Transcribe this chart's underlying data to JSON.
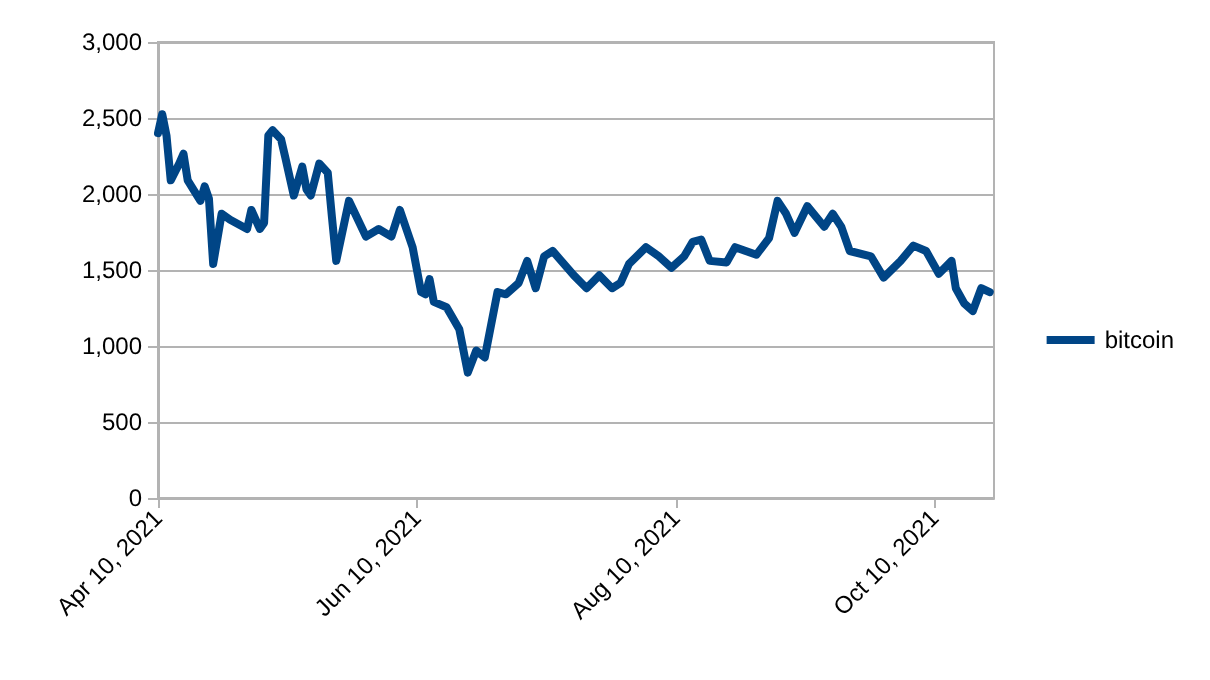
{
  "chart_data": {
    "type": "line",
    "x": [
      "2021-04-10",
      "2021-04-11",
      "2021-04-12",
      "2021-04-13",
      "2021-04-15",
      "2021-04-16",
      "2021-04-17",
      "2021-04-20",
      "2021-04-21",
      "2021-04-22",
      "2021-04-23",
      "2021-04-25",
      "2021-04-27",
      "2021-05-01",
      "2021-05-02",
      "2021-05-04",
      "2021-05-05",
      "2021-05-06",
      "2021-05-07",
      "2021-05-09",
      "2021-05-10",
      "2021-05-12",
      "2021-05-14",
      "2021-05-15",
      "2021-05-16",
      "2021-05-18",
      "2021-05-20",
      "2021-05-21",
      "2021-05-22",
      "2021-05-25",
      "2021-05-29",
      "2021-06-01",
      "2021-06-04",
      "2021-06-06",
      "2021-06-09",
      "2021-06-11",
      "2021-06-12",
      "2021-06-13",
      "2021-06-14",
      "2021-06-17",
      "2021-06-20",
      "2021-06-22",
      "2021-06-24",
      "2021-06-26",
      "2021-06-29",
      "2021-07-01",
      "2021-07-04",
      "2021-07-06",
      "2021-07-08",
      "2021-07-10",
      "2021-07-12",
      "2021-07-17",
      "2021-07-20",
      "2021-07-23",
      "2021-07-26",
      "2021-07-28",
      "2021-07-30",
      "2021-08-03",
      "2021-08-06",
      "2021-08-09",
      "2021-08-12",
      "2021-08-14",
      "2021-08-16",
      "2021-08-18",
      "2021-08-22",
      "2021-08-24",
      "2021-08-29",
      "2021-09-01",
      "2021-09-03",
      "2021-09-05",
      "2021-09-07",
      "2021-09-10",
      "2021-09-14",
      "2021-09-16",
      "2021-09-18",
      "2021-09-20",
      "2021-09-25",
      "2021-09-28",
      "2021-10-02",
      "2021-10-05",
      "2021-10-08",
      "2021-10-11",
      "2021-10-14",
      "2021-10-15",
      "2021-10-17",
      "2021-10-19",
      "2021-10-21",
      "2021-10-23"
    ],
    "series": [
      {
        "name": "bitcoin",
        "color": "#004586",
        "values": [
          2400,
          2525,
          2385,
          2090,
          2200,
          2265,
          2090,
          1955,
          2050,
          1970,
          1540,
          1870,
          1830,
          1770,
          1895,
          1770,
          1810,
          2385,
          2420,
          2360,
          2240,
          1990,
          2180,
          2030,
          1990,
          2200,
          2140,
          1845,
          1560,
          1955,
          1720,
          1770,
          1720,
          1895,
          1650,
          1355,
          1340,
          1440,
          1290,
          1255,
          1110,
          825,
          970,
          925,
          1355,
          1340,
          1415,
          1560,
          1380,
          1590,
          1625,
          1465,
          1380,
          1465,
          1380,
          1415,
          1540,
          1650,
          1590,
          1515,
          1590,
          1685,
          1700,
          1560,
          1550,
          1650,
          1600,
          1710,
          1955,
          1870,
          1745,
          1920,
          1785,
          1870,
          1785,
          1625,
          1590,
          1450,
          1560,
          1660,
          1625,
          1475,
          1560,
          1380,
          1280,
          1230,
          1380,
          1355
        ]
      }
    ],
    "xlim": [
      "2021-04-10",
      "2021-10-24"
    ],
    "xticks": [
      {
        "value": "2021-04-10",
        "label": "Apr 10, 2021"
      },
      {
        "value": "2021-06-10",
        "label": "Jun 10, 2021"
      },
      {
        "value": "2021-08-10",
        "label": "Aug 10, 2021"
      },
      {
        "value": "2021-10-10",
        "label": "Oct 10, 2021"
      }
    ],
    "ylim": [
      0,
      3000
    ],
    "yticks": [
      0,
      500,
      {
        "value": 1000,
        "label": "1,000"
      },
      {
        "value": 1500,
        "label": "1,500"
      },
      {
        "value": 2000,
        "label": "2,000"
      },
      {
        "value": 2500,
        "label": "2,500"
      },
      {
        "value": 3000,
        "label": "3,000"
      }
    ],
    "grid": "y",
    "legend": "right",
    "marker": "none",
    "line_style": "solid"
  }
}
